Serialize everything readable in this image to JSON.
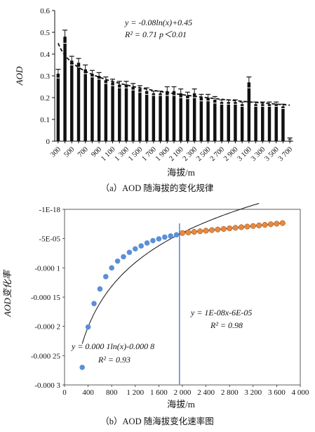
{
  "chart_data": [
    {
      "type": "bar",
      "caption": "（a）AOD 随海拔的变化规律",
      "xlabel": "海拔/m",
      "ylabel": "AOD",
      "ylim": [
        0,
        0.6
      ],
      "yticks": [
        "0",
        "0.1",
        "0.2",
        "0.3",
        "0.4",
        "0.5",
        "0.6"
      ],
      "categories": [
        "300",
        "400",
        "500",
        "600",
        "700",
        "800",
        "900",
        "1000",
        "1100",
        "1200",
        "1300",
        "1400",
        "1500",
        "1600",
        "1700",
        "1800",
        "1900",
        "2000",
        "2100",
        "2200",
        "2300",
        "2400",
        "2500",
        "2600",
        "2700",
        "2800",
        "2900",
        "3000",
        "3100",
        "3200",
        "3300",
        "3400",
        "3500",
        "3600",
        "3700"
      ],
      "category_labels": [
        "300",
        "",
        "500",
        "",
        "700",
        "",
        "900",
        "",
        "1 100",
        "",
        "1 300",
        "",
        "1 500",
        "",
        "1 700",
        "",
        "1 900",
        "",
        "2 100",
        "",
        "2 300",
        "",
        "2 500",
        "",
        "2 700",
        "",
        "2 900",
        "",
        "3 100",
        "",
        "3 300",
        "",
        "3 500",
        "",
        "3 700"
      ],
      "values": [
        0.31,
        0.48,
        0.37,
        0.36,
        0.33,
        0.31,
        0.3,
        0.28,
        0.27,
        0.26,
        0.26,
        0.25,
        0.24,
        0.23,
        0.22,
        0.22,
        0.23,
        0.23,
        0.22,
        0.21,
        0.22,
        0.2,
        0.2,
        0.19,
        0.18,
        0.18,
        0.18,
        0.17,
        0.27,
        0.17,
        0.17,
        0.17,
        0.17,
        0.16,
        0.01
      ],
      "errors": [
        0.02,
        0.03,
        0.02,
        0.02,
        0.02,
        0.015,
        0.015,
        0.015,
        0.015,
        0.015,
        0.015,
        0.015,
        0.015,
        0.015,
        0.01,
        0.01,
        0.02,
        0.02,
        0.02,
        0.015,
        0.02,
        0.015,
        0.015,
        0.015,
        0.01,
        0.01,
        0.01,
        0.01,
        0.025,
        0.01,
        0.01,
        0.01,
        0.01,
        0.01,
        0.005
      ],
      "fit": {
        "equation": "y = -0.08ln(x)+0.45",
        "r2": "R² = 0.71 p＜0.01",
        "style": "dashed"
      }
    },
    {
      "type": "scatter",
      "caption": "（b）AOD 随海拔变化速率图",
      "xlabel": "海拔/m",
      "ylabel": "AOD变化率",
      "xlim": [
        0,
        4000
      ],
      "ylim": [
        -0.0003,
        0
      ],
      "xticks": [
        "0",
        "400",
        "800",
        "1 200",
        "1 600",
        "2 000",
        "2 400",
        "2 800",
        "3 200",
        "3 600",
        "4 000"
      ],
      "yticks": [
        "-1E-18",
        "-5E-05",
        "-0.000 1",
        "-0.000 15",
        "-0.000 2",
        "-0.000 25",
        "-0.000 3"
      ],
      "vline_x": 1950,
      "series": [
        {
          "color": "#5b8fd6",
          "x": [
            300,
            400,
            500,
            600,
            700,
            800,
            900,
            1000,
            1100,
            1200,
            1300,
            1400,
            1500,
            1600,
            1700,
            1800,
            1900
          ],
          "y": [
            -0.00027,
            -0.000201,
            -0.000161,
            -0.000136,
            -0.000115,
            -0.0001,
            -8.85e-05,
            -8.1e-05,
            -7.35e-05,
            -6.75e-05,
            -6.25e-05,
            -5.75e-05,
            -5.35e-05,
            -5.05e-05,
            -4.75e-05,
            -4.55e-05,
            -4.35e-05
          ],
          "fit": {
            "equation": "y = 0.000 1ln(x)-0.000 8",
            "r2": "R² = 0.93"
          }
        },
        {
          "color": "#e9883f",
          "x": [
            2000,
            2100,
            2200,
            2300,
            2400,
            2500,
            2600,
            2700,
            2800,
            2900,
            3000,
            3100,
            3200,
            3300,
            3400,
            3500,
            3600,
            3700
          ],
          "y": [
            -4.05e-05,
            -3.95e-05,
            -3.85e-05,
            -3.75e-05,
            -3.65e-05,
            -3.55e-05,
            -3.45e-05,
            -3.35e-05,
            -3.25e-05,
            -3.15e-05,
            -3.05e-05,
            -2.95e-05,
            -2.85e-05,
            -2.75e-05,
            -2.65e-05,
            -2.55e-05,
            -2.45e-05,
            -2.35e-05
          ],
          "fit": {
            "equation": "y = 1E-08x-6E-05",
            "r2": "R² = 0.98"
          }
        }
      ]
    }
  ]
}
